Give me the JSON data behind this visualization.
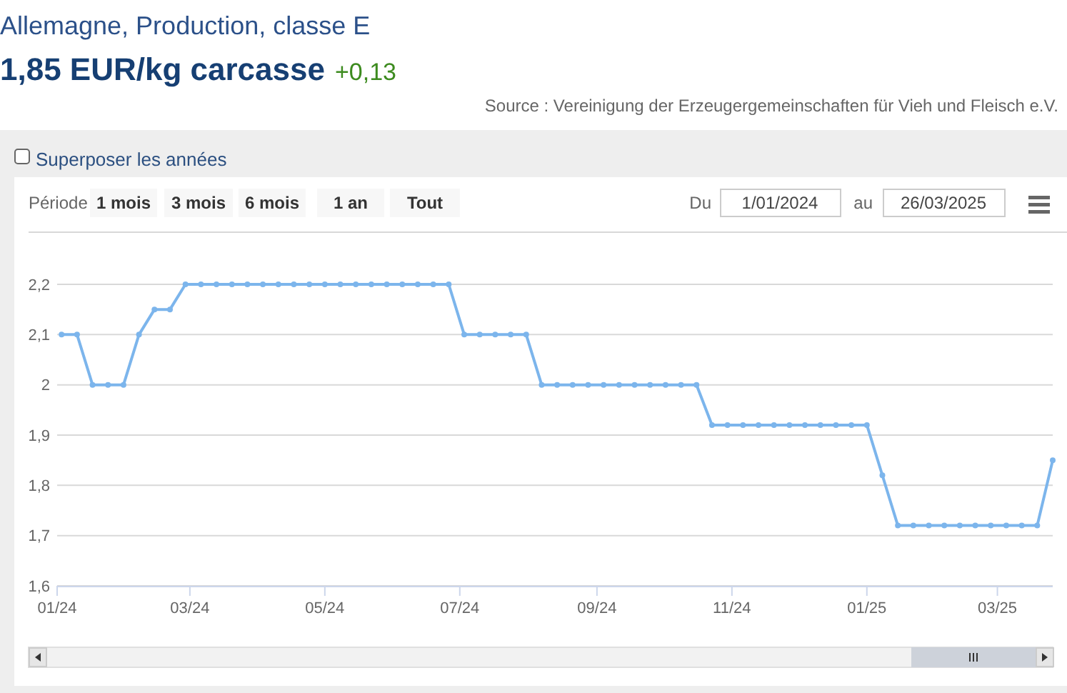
{
  "chart_data": {
    "type": "line",
    "title": "Allemagne, Production, classe E",
    "subtitle": "1,85 EUR/kg carcasse",
    "annotations": [
      "+0,13",
      "Source : Vereinigung der Erzeugergemeinschaften für Vieh und Fleisch e.V.",
      "Superposer les années",
      "Période",
      "1 mois",
      "3 mois",
      "6 mois",
      "1 an",
      "Tout",
      "Du",
      "1/01/2024",
      "au",
      "26/03/2025"
    ],
    "x": [
      "2024-01-03",
      "2024-01-10",
      "2024-01-17",
      "2024-01-24",
      "2024-01-31",
      "2024-02-07",
      "2024-02-14",
      "2024-02-21",
      "2024-02-28",
      "2024-03-06",
      "2024-03-13",
      "2024-03-20",
      "2024-03-27",
      "2024-04-03",
      "2024-04-10",
      "2024-04-17",
      "2024-04-24",
      "2024-05-01",
      "2024-05-08",
      "2024-05-15",
      "2024-05-22",
      "2024-05-29",
      "2024-06-05",
      "2024-06-12",
      "2024-06-19",
      "2024-06-26",
      "2024-07-03",
      "2024-07-10",
      "2024-07-17",
      "2024-07-24",
      "2024-07-31",
      "2024-08-07",
      "2024-08-14",
      "2024-08-21",
      "2024-08-28",
      "2024-09-04",
      "2024-09-11",
      "2024-09-18",
      "2024-09-25",
      "2024-10-02",
      "2024-10-09",
      "2024-10-16",
      "2024-10-23",
      "2024-10-30",
      "2024-11-06",
      "2024-11-13",
      "2024-11-20",
      "2024-11-27",
      "2024-12-04",
      "2024-12-11",
      "2024-12-18",
      "2024-12-25",
      "2025-01-01",
      "2025-01-08",
      "2025-01-15",
      "2025-01-22",
      "2025-01-29",
      "2025-02-05",
      "2025-02-12",
      "2025-02-19",
      "2025-02-26",
      "2025-03-05",
      "2025-03-12",
      "2025-03-19",
      "2025-03-26"
    ],
    "values": [
      2.1,
      2.1,
      2,
      2,
      2,
      2.1,
      2.15,
      2.15,
      2.2,
      2.2,
      2.2,
      2.2,
      2.2,
      2.2,
      2.2,
      2.2,
      2.2,
      2.2,
      2.2,
      2.2,
      2.2,
      2.2,
      2.2,
      2.2,
      2.2,
      2.2,
      2.1,
      2.1,
      2.1,
      2.1,
      2.1,
      2,
      2,
      2,
      2,
      2,
      2,
      2,
      2,
      2,
      2,
      2,
      1.92,
      1.92,
      1.92,
      1.92,
      1.92,
      1.92,
      1.92,
      1.92,
      1.92,
      1.92,
      1.92,
      1.82,
      1.72,
      1.72,
      1.72,
      1.72,
      1.72,
      1.72,
      1.72,
      1.72,
      1.72,
      1.72,
      1.85
    ],
    "color": "#7cb5ec",
    "marker": "circle",
    "line_style": "solid",
    "xlim": [
      "2024-01-01",
      "2025-03-26"
    ],
    "xticks": [
      {
        "value": "2024-01-01",
        "label": "01/24"
      },
      {
        "value": "2024-03-01",
        "label": "03/24"
      },
      {
        "value": "2024-05-01",
        "label": "05/24"
      },
      {
        "value": "2024-07-01",
        "label": "07/24"
      },
      {
        "value": "2024-09-01",
        "label": "09/24"
      },
      {
        "value": "2024-11-01",
        "label": "11/24"
      },
      {
        "value": "2025-01-01",
        "label": "01/25"
      },
      {
        "value": "2025-03-01",
        "label": "03/25"
      }
    ],
    "ylim": [
      1.6,
      2.2
    ],
    "yticks": [
      {
        "value": 1.6,
        "label": "1,6"
      },
      {
        "value": 1.7,
        "label": "1,7"
      },
      {
        "value": 1.8,
        "label": "1,8"
      },
      {
        "value": 1.9,
        "label": "1,9"
      },
      2,
      {
        "value": 2.1,
        "label": "2,1"
      },
      {
        "value": 2.2,
        "label": "2,2"
      }
    ],
    "grid": "y"
  }
}
